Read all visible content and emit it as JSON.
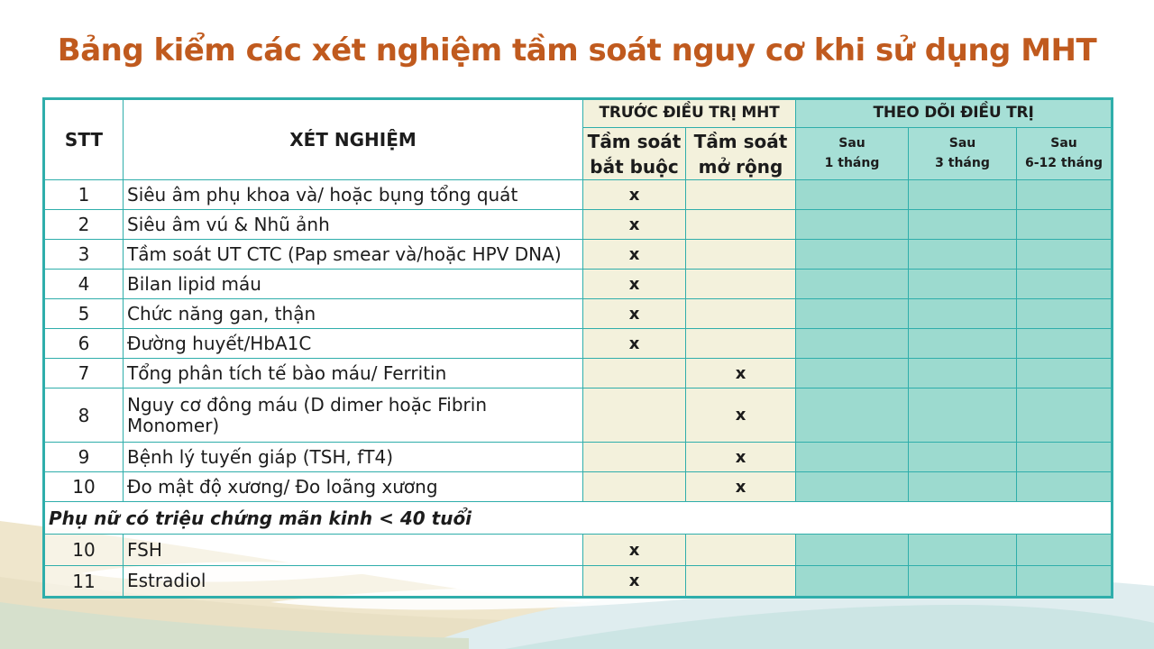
{
  "theme": {
    "title-color": "#C05A1E",
    "table-border": "#2FAEAB",
    "beige-cell": "#F3F1DC",
    "teal-header-cell": "#A6DFD6",
    "teal-cell": "#9CDACF",
    "mandatory-red": "#E0191C",
    "x-mark-color": "#B5491C"
  },
  "slide": {
    "title": "Bảng kiểm các xét nghiệm tầm soát nguy cơ khi sử dụng MHT"
  },
  "table": {
    "header": {
      "stt": "STT",
      "test": "XÉT NGHIỆM",
      "before_group": "TRƯỚC ĐIỀU TRỊ MHT",
      "follow_group": "THEO DÕI ĐIỀU TRỊ",
      "mandatory": "Tầm soát bắt buộc",
      "extended": "Tầm soát mở rộng",
      "after_1m": "Sau\n1 tháng",
      "after_3m": "Sau\n3 tháng",
      "after_6_12m": "Sau\n6-12 tháng"
    },
    "rows": [
      {
        "stt": "1",
        "test": "Siêu âm phụ khoa và/ hoặc bụng tổng quát",
        "mandatory": "x",
        "extended": "",
        "m1": "",
        "m3": "",
        "m612": ""
      },
      {
        "stt": "2",
        "test": "Siêu âm vú & Nhũ ảnh",
        "mandatory": "x",
        "extended": "",
        "m1": "",
        "m3": "",
        "m612": ""
      },
      {
        "stt": "3",
        "test": "Tầm soát UT CTC (Pap smear và/hoặc HPV DNA)",
        "mandatory": "x",
        "extended": "",
        "m1": "",
        "m3": "",
        "m612": ""
      },
      {
        "stt": "4",
        "test": "Bilan lipid máu",
        "mandatory": "x",
        "extended": "",
        "m1": "",
        "m3": "",
        "m612": ""
      },
      {
        "stt": "5",
        "test": "Chức năng gan, thận",
        "mandatory": "x",
        "extended": "",
        "m1": "",
        "m3": "",
        "m612": ""
      },
      {
        "stt": "6",
        "test": "Đường huyết/HbA1C",
        "mandatory": "x",
        "extended": "",
        "m1": "",
        "m3": "",
        "m612": ""
      },
      {
        "stt": "7",
        "test": "Tổng phân tích tế bào máu/ Ferritin",
        "mandatory": "",
        "extended": "x",
        "m1": "",
        "m3": "",
        "m612": ""
      },
      {
        "stt": "8",
        "test": "Nguy cơ đông máu (D dimer hoặc Fibrin\nMonomer)",
        "mandatory": "",
        "extended": "x",
        "m1": "",
        "m3": "",
        "m612": ""
      },
      {
        "stt": "9",
        "test": "Bệnh lý tuyến giáp (TSH, fT4)",
        "mandatory": "",
        "extended": "x",
        "m1": "",
        "m3": "",
        "m612": ""
      },
      {
        "stt": "10",
        "test": "Đo mật độ xương/ Đo loãng xương",
        "mandatory": "",
        "extended": "x",
        "m1": "",
        "m3": "",
        "m612": ""
      }
    ],
    "section": {
      "label": "Phụ nữ có triệu chứng mãn kinh < 40 tuổi",
      "rows": [
        {
          "stt": "10",
          "test": "FSH",
          "mandatory": "x",
          "extended": "",
          "m1": "",
          "m3": "",
          "m612": ""
        },
        {
          "stt": "11",
          "test": "Estradiol",
          "mandatory": "x",
          "extended": "",
          "m1": "",
          "m3": "",
          "m612": ""
        }
      ]
    }
  }
}
